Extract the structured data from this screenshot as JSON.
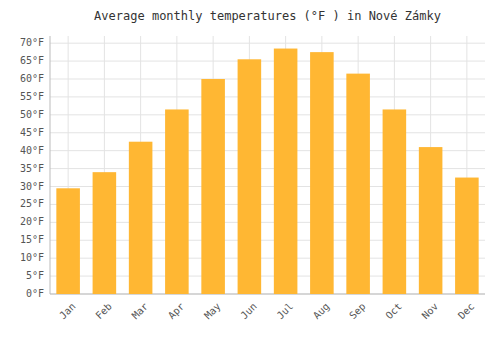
{
  "chart_data": {
    "type": "bar",
    "title": "Average monthly temperatures (°F ) in Nové Zámky",
    "categories": [
      "Jan",
      "Feb",
      "Mar",
      "Apr",
      "May",
      "Jun",
      "Jul",
      "Aug",
      "Sep",
      "Oct",
      "Nov",
      "Dec"
    ],
    "values": [
      29.5,
      34.0,
      42.5,
      51.5,
      60.0,
      65.5,
      68.5,
      67.5,
      61.5,
      51.5,
      41.0,
      32.5
    ],
    "color": "#FFB733",
    "ylim": [
      0,
      72
    ],
    "yticks": [
      {
        "value": 0,
        "label": "0°F"
      },
      {
        "value": 5,
        "label": "5°F"
      },
      {
        "value": 10,
        "label": "10°F"
      },
      {
        "value": 15,
        "label": "15°F"
      },
      {
        "value": 20,
        "label": "20°F"
      },
      {
        "value": 25,
        "label": "25°F"
      },
      {
        "value": 30,
        "label": "30°F"
      },
      {
        "value": 35,
        "label": "35°F"
      },
      {
        "value": 40,
        "label": "40°F"
      },
      {
        "value": 45,
        "label": "45°F"
      },
      {
        "value": 50,
        "label": "50°F"
      },
      {
        "value": 55,
        "label": "55°F"
      },
      {
        "value": 60,
        "label": "60°F"
      },
      {
        "value": 65,
        "label": "65°F"
      },
      {
        "value": 70,
        "label": "70°F"
      }
    ],
    "grid": true
  }
}
